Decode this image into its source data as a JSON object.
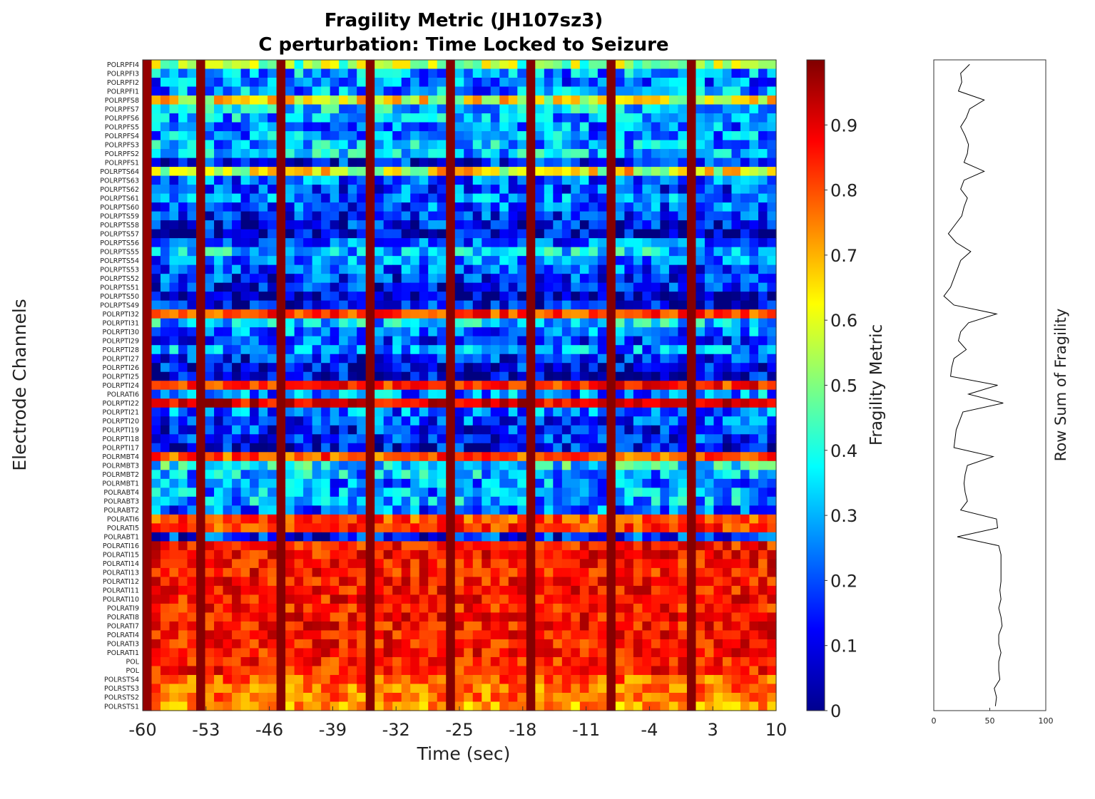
{
  "chart_data": [
    {
      "type": "heatmap",
      "title": "Fragility Metric (JH107sz3)",
      "subtitle": "C perturbation:  Time Locked to Seizure",
      "xlabel": "Time (sec)",
      "ylabel": "Electrode Channels",
      "xlim": [
        -60,
        10
      ],
      "x_ticks": [
        -60,
        -53,
        -46,
        -39,
        -32,
        -25,
        -18,
        -11,
        -4,
        3,
        10
      ],
      "n_time_windows": 71,
      "channels": [
        "POLRPFI4",
        "POLRPFI3",
        "POLRPFI2",
        "POLRPFI1",
        "POLRPFS8",
        "POLRPFS7",
        "POLRPFS6",
        "POLRPFS5",
        "POLRPFS4",
        "POLRPFS3",
        "POLRPFS2",
        "POLRPFS1",
        "POLRPTS64",
        "POLRPTS63",
        "POLRPTS62",
        "POLRPTS61",
        "POLRPTS60",
        "POLRPTS59",
        "POLRPTS58",
        "POLRPTS57",
        "POLRPTS56",
        "POLRPTS55",
        "POLRPTS54",
        "POLRPTS53",
        "POLRPTS52",
        "POLRPTS51",
        "POLRPTS50",
        "POLRPTS49",
        "POLRPTI32",
        "POLRPTI31",
        "POLRPTI30",
        "POLRPTI29",
        "POLRPTI28",
        "POLRPTI27",
        "POLRPTI26",
        "POLRPTI25",
        "POLRPTI24",
        "POLRATI6",
        "POLRPTI22",
        "POLRPTI21",
        "POLRPTI20",
        "POLRPTI19",
        "POLRPTI18",
        "POLRPTI17",
        "POLRMBT4",
        "POLRMBT3",
        "POLRMBT2",
        "POLRMBT1",
        "POLRABT4",
        "POLRABT3",
        "POLRABT2",
        "POLRATI6",
        "POLRATI5",
        "POLRABT1",
        "POLRATI16",
        "POLRATI15",
        "POLRATI14",
        "POLRATI13",
        "POLRATI12",
        "POLRATI11",
        "POLRATI10",
        "POLRATI9",
        "POLRATI8",
        "POLRATI7",
        "POLRATI4",
        "POLRATI3",
        "POLRATI1",
        "POL",
        "POL",
        "POLRSTS4",
        "POLRSTS3",
        "POLRSTS2",
        "POLRSTS1"
      ],
      "channel_base_fragility": [
        0.52,
        0.28,
        0.24,
        0.26,
        0.62,
        0.33,
        0.29,
        0.25,
        0.27,
        0.3,
        0.32,
        0.14,
        0.62,
        0.22,
        0.19,
        0.24,
        0.2,
        0.16,
        0.13,
        0.07,
        0.22,
        0.32,
        0.24,
        0.2,
        0.16,
        0.14,
        0.05,
        0.12,
        0.82,
        0.32,
        0.24,
        0.19,
        0.26,
        0.14,
        0.11,
        0.08,
        0.84,
        0.26,
        0.9,
        0.23,
        0.19,
        0.16,
        0.15,
        0.12,
        0.8,
        0.37,
        0.3,
        0.26,
        0.27,
        0.29,
        0.22,
        0.8,
        0.82,
        0.15,
        0.86,
        0.86,
        0.86,
        0.86,
        0.86,
        0.86,
        0.86,
        0.85,
        0.86,
        0.86,
        0.86,
        0.86,
        0.86,
        0.85,
        0.85,
        0.78,
        0.76,
        0.76,
        0.72
      ],
      "high_fragility_columns_sec": [
        -54,
        -45,
        -35,
        -26,
        -17,
        -8,
        1
      ],
      "first_column_sec": -60,
      "colorbar": {
        "label": "Fragility Metric",
        "range": [
          0,
          1
        ],
        "ticks": [
          "0",
          "0.1",
          "0.2",
          "0.3",
          "0.4",
          "0.5",
          "0.6",
          "0.7",
          "0.8",
          "0.9"
        ],
        "colormap": "jet"
      },
      "grid": false
    },
    {
      "type": "line",
      "orientation": "vertical",
      "xlabel": "Row Sum of Fragility",
      "xlim": [
        0,
        100
      ],
      "x_ticks": [
        "0",
        "50",
        "100"
      ],
      "values": [
        32,
        24,
        25,
        22,
        45,
        32,
        29,
        24,
        28,
        31,
        30,
        27,
        45,
        27,
        24,
        30,
        27,
        25,
        19,
        13,
        20,
        33,
        24,
        21,
        18,
        15,
        9,
        18,
        56,
        31,
        24,
        22,
        29,
        18,
        16,
        15,
        57,
        31,
        62,
        26,
        23,
        20,
        19,
        18,
        53,
        30,
        28,
        27,
        28,
        30,
        24,
        56,
        57,
        21,
        58,
        60,
        60,
        60,
        60,
        59,
        60,
        58,
        60,
        61,
        58,
        58,
        60,
        58,
        58,
        59,
        54,
        56,
        55
      ]
    }
  ]
}
